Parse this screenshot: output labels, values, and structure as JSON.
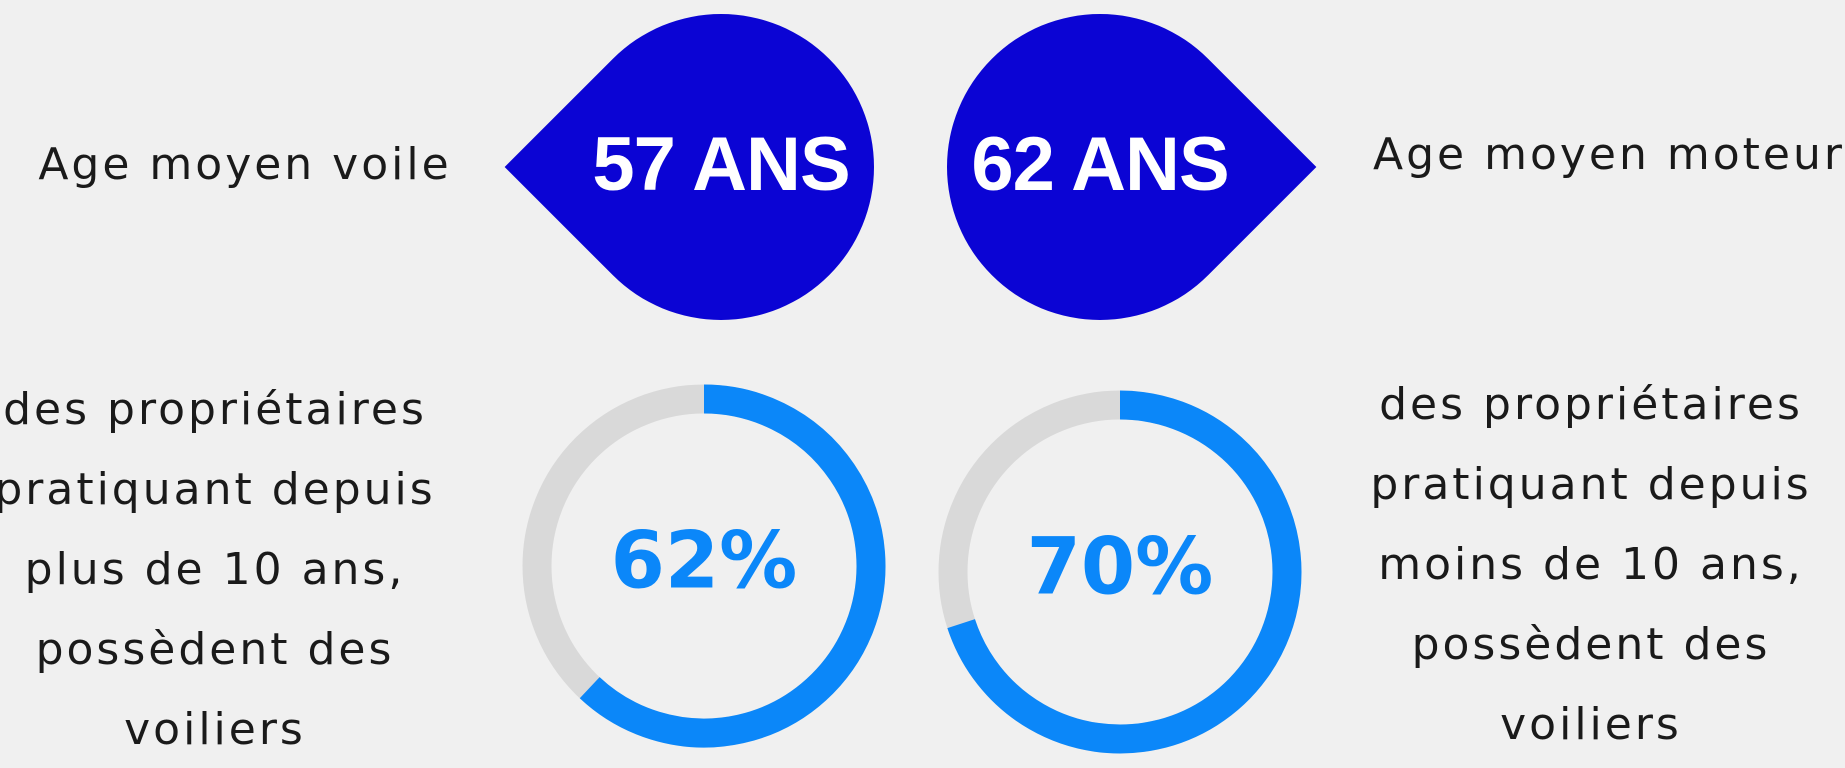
{
  "stats": [
    {
      "label": "Age moyen voile",
      "value": "57 ANS"
    },
    {
      "label": "Age moyen moteur",
      "value": "62 ANS"
    }
  ],
  "gauges": [
    {
      "value": 62,
      "value_label": "62%",
      "caption": [
        "des propriétaires",
        "pratiquant depuis",
        "plus de 10 ans,",
        "possèdent des",
        "voiliers"
      ]
    },
    {
      "value": 70,
      "value_label": "70%",
      "caption": [
        "des propriétaires",
        "pratiquant depuis",
        "moins de 10 ans,",
        "possèdent des",
        "voiliers"
      ]
    }
  ]
}
